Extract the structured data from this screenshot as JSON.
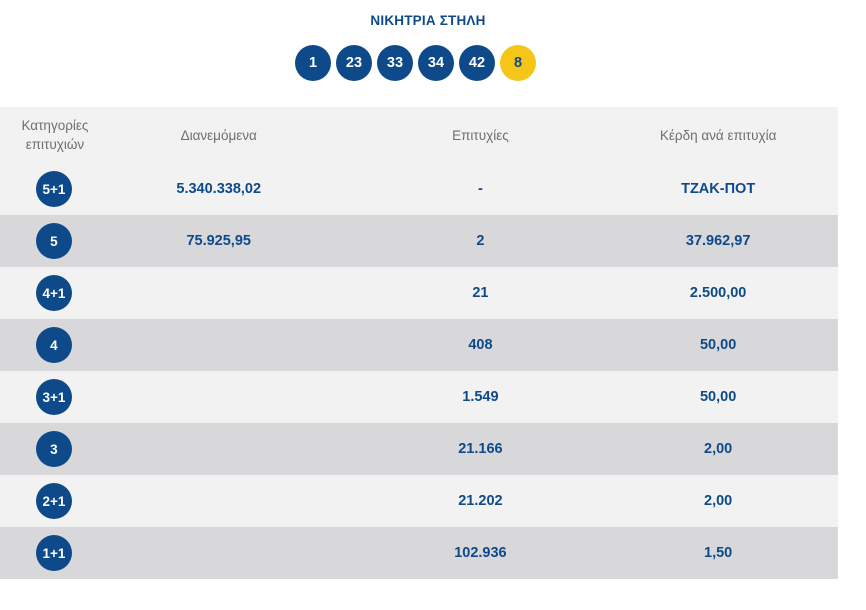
{
  "winning_column": {
    "title": "ΝΙΚΗΤΡΙΑ ΣΤΗΛΗ",
    "numbers": [
      "1",
      "23",
      "33",
      "34",
      "42"
    ],
    "bonus": "8"
  },
  "table": {
    "headers": {
      "category_line1": "Κατηγορίες",
      "category_line2": "επιτυχιών",
      "distributed": "Διανεμόμενα",
      "winners": "Επιτυχίες",
      "prize_per_winner": "Κέρδη ανά επιτυχία"
    },
    "rows": [
      {
        "category": "5+1",
        "distributed": "5.340.338,02",
        "winners": "-",
        "prize": "ΤΖΑΚ-ΠΟΤ"
      },
      {
        "category": "5",
        "distributed": "75.925,95",
        "winners": "2",
        "prize": "37.962,97"
      },
      {
        "category": "4+1",
        "distributed": "",
        "winners": "21",
        "prize": "2.500,00"
      },
      {
        "category": "4",
        "distributed": "",
        "winners": "408",
        "prize": "50,00"
      },
      {
        "category": "3+1",
        "distributed": "",
        "winners": "1.549",
        "prize": "50,00"
      },
      {
        "category": "3",
        "distributed": "",
        "winners": "21.166",
        "prize": "2,00"
      },
      {
        "category": "2+1",
        "distributed": "",
        "winners": "21.202",
        "prize": "2,00"
      },
      {
        "category": "1+1",
        "distributed": "",
        "winners": "102.936",
        "prize": "1,50"
      }
    ]
  },
  "colors": {
    "primary_blue": "#0e4a8a",
    "bonus_yellow": "#f5c518",
    "row_light": "#f2f2f2",
    "row_dark": "#d8d8da",
    "header_text": "#6e6e6e"
  }
}
